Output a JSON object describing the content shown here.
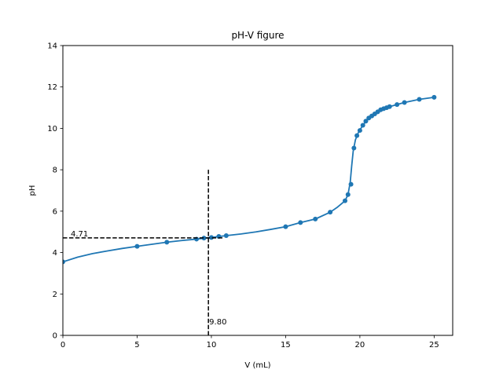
{
  "chart_data": {
    "type": "line",
    "title": "pH-V figure",
    "xlabel": "V (mL)",
    "ylabel": "pH",
    "xlim": [
      0,
      26.25
    ],
    "ylim": [
      0,
      14
    ],
    "xticks": [
      0,
      5,
      10,
      15,
      20,
      25
    ],
    "yticks": [
      0,
      2,
      4,
      6,
      8,
      10,
      12,
      14
    ],
    "x_tick_labels": [
      "0",
      "5",
      "10",
      "15",
      "20",
      "25"
    ],
    "y_tick_labels": [
      "0",
      "2",
      "4",
      "6",
      "8",
      "10",
      "12",
      "14"
    ],
    "grid": false,
    "line_color": "#1f77b4",
    "annotation_color": "#000000",
    "series": [
      {
        "points": [
          [
            0,
            3.55
          ],
          [
            5,
            4.3
          ],
          [
            7,
            4.5
          ],
          [
            9,
            4.65
          ],
          [
            9.5,
            4.7
          ],
          [
            10,
            4.73
          ],
          [
            10.5,
            4.78
          ],
          [
            11,
            4.82
          ],
          [
            15,
            5.25
          ],
          [
            16,
            5.45
          ],
          [
            17,
            5.62
          ],
          [
            18,
            5.95
          ],
          [
            19,
            6.5
          ],
          [
            19.2,
            6.8
          ],
          [
            19.4,
            7.3
          ],
          [
            19.6,
            9.05
          ],
          [
            19.8,
            9.65
          ],
          [
            20,
            9.9
          ],
          [
            20.2,
            10.15
          ],
          [
            20.4,
            10.35
          ],
          [
            20.6,
            10.5
          ],
          [
            20.8,
            10.6
          ],
          [
            21,
            10.7
          ],
          [
            21.2,
            10.8
          ],
          [
            21.4,
            10.9
          ],
          [
            21.6,
            10.95
          ],
          [
            21.8,
            11.0
          ],
          [
            22,
            11.05
          ],
          [
            22.5,
            11.15
          ],
          [
            23,
            11.25
          ],
          [
            24,
            11.4
          ],
          [
            25,
            11.5
          ]
        ],
        "curve": [
          [
            0,
            3.55
          ],
          [
            1,
            3.78
          ],
          [
            2,
            3.95
          ],
          [
            3,
            4.08
          ],
          [
            4,
            4.2
          ],
          [
            5,
            4.3
          ],
          [
            6,
            4.4
          ],
          [
            7,
            4.5
          ],
          [
            8,
            4.58
          ],
          [
            9,
            4.65
          ],
          [
            10,
            4.73
          ],
          [
            11,
            4.82
          ],
          [
            12,
            4.9
          ],
          [
            13,
            5.0
          ],
          [
            14,
            5.12
          ],
          [
            15,
            5.25
          ],
          [
            16,
            5.45
          ],
          [
            17,
            5.62
          ],
          [
            18,
            5.95
          ],
          [
            18.5,
            6.2
          ],
          [
            19,
            6.5
          ],
          [
            19.2,
            6.8
          ],
          [
            19.35,
            7.4
          ],
          [
            19.45,
            8.2
          ],
          [
            19.55,
            8.9
          ],
          [
            19.7,
            9.45
          ],
          [
            19.9,
            9.8
          ],
          [
            20.2,
            10.15
          ],
          [
            20.6,
            10.5
          ],
          [
            21,
            10.72
          ],
          [
            21.5,
            10.92
          ],
          [
            22,
            11.05
          ],
          [
            23,
            11.25
          ],
          [
            24,
            11.4
          ],
          [
            25,
            11.5
          ]
        ]
      }
    ],
    "annotations": {
      "h_line": {
        "y": 4.71,
        "x_from": 0,
        "x_to": 10.8
      },
      "v_line": {
        "x": 9.8,
        "y_from": 0,
        "y_to": 8
      },
      "h_label": "4.71",
      "v_label": "9.80"
    }
  }
}
